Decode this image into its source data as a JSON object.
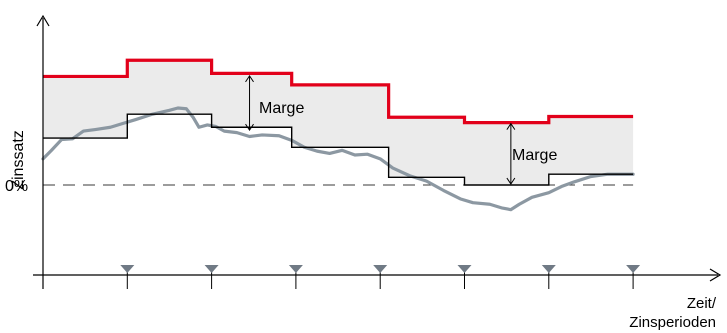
{
  "chart_data": {
    "type": "line",
    "title": "",
    "ylabel": "Zinssatz",
    "xlabel_line1": "Zeit/",
    "xlabel_line2": "Zinsperioden",
    "zero_label": "0%",
    "annotation_1": "Marge",
    "annotation_2": "Marge",
    "period_boundaries": [
      0,
      1,
      2,
      3,
      4,
      5,
      6,
      7
    ],
    "ylim": [
      -1.1,
      2.15
    ],
    "series": [
      {
        "role": "upper-rate",
        "color": "#e2001a",
        "steps": [
          {
            "from": 0,
            "to": 1,
            "y": 1.41
          },
          {
            "from": 1,
            "to": 2,
            "y": 1.62
          },
          {
            "from": 2,
            "to": 2.95,
            "y": 1.45
          },
          {
            "from": 2.95,
            "to": 4.1,
            "y": 1.3
          },
          {
            "from": 4.1,
            "to": 5.0,
            "y": 0.88
          },
          {
            "from": 5.0,
            "to": 6.0,
            "y": 0.81
          },
          {
            "from": 6.0,
            "to": 7.0,
            "y": 0.89
          }
        ]
      },
      {
        "role": "base-rate",
        "color": "#000000",
        "steps": [
          {
            "from": 0,
            "to": 1,
            "y": 0.61
          },
          {
            "from": 1,
            "to": 2,
            "y": 0.92
          },
          {
            "from": 2,
            "to": 2.95,
            "y": 0.75
          },
          {
            "from": 2.95,
            "to": 4.1,
            "y": 0.49
          },
          {
            "from": 4.1,
            "to": 5.0,
            "y": 0.1
          },
          {
            "from": 5.0,
            "to": 6.0,
            "y": 0.0
          },
          {
            "from": 6.0,
            "to": 7.0,
            "y": 0.14
          }
        ]
      },
      {
        "role": "market-rate",
        "color": "#8c98a2",
        "points": [
          [
            0.0,
            0.34
          ],
          [
            0.1,
            0.45
          ],
          [
            0.22,
            0.59
          ],
          [
            0.35,
            0.6
          ],
          [
            0.48,
            0.7
          ],
          [
            0.62,
            0.72
          ],
          [
            0.8,
            0.75
          ],
          [
            0.95,
            0.8
          ],
          [
            1.1,
            0.85
          ],
          [
            1.3,
            0.92
          ],
          [
            1.5,
            0.97
          ],
          [
            1.6,
            1.0
          ],
          [
            1.7,
            0.99
          ],
          [
            1.78,
            0.88
          ],
          [
            1.85,
            0.75
          ],
          [
            1.95,
            0.78
          ],
          [
            2.05,
            0.76
          ],
          [
            2.15,
            0.7
          ],
          [
            2.3,
            0.68
          ],
          [
            2.45,
            0.63
          ],
          [
            2.6,
            0.65
          ],
          [
            2.8,
            0.64
          ],
          [
            2.95,
            0.58
          ],
          [
            3.1,
            0.49
          ],
          [
            3.25,
            0.44
          ],
          [
            3.4,
            0.41
          ],
          [
            3.55,
            0.45
          ],
          [
            3.7,
            0.39
          ],
          [
            3.85,
            0.4
          ],
          [
            4.0,
            0.34
          ],
          [
            4.15,
            0.22
          ],
          [
            4.35,
            0.12
          ],
          [
            4.55,
            0.05
          ],
          [
            4.75,
            -0.07
          ],
          [
            4.95,
            -0.18
          ],
          [
            5.1,
            -0.23
          ],
          [
            5.3,
            -0.25
          ],
          [
            5.45,
            -0.3
          ],
          [
            5.55,
            -0.32
          ],
          [
            5.65,
            -0.25
          ],
          [
            5.8,
            -0.16
          ],
          [
            6.0,
            -0.1
          ],
          [
            6.15,
            -0.02
          ],
          [
            6.3,
            0.04
          ],
          [
            6.5,
            0.11
          ],
          [
            6.7,
            0.14
          ],
          [
            7.0,
            0.14
          ]
        ]
      }
    ],
    "margin_annotations": [
      {
        "x": 2.45,
        "from": 0.7,
        "to": 1.43
      },
      {
        "x": 5.55,
        "from": 0.0,
        "to": 0.81
      }
    ],
    "margin_fill_color": "#ebebeb",
    "zero_line_style": "dashed",
    "marker_color": "#707a85"
  }
}
